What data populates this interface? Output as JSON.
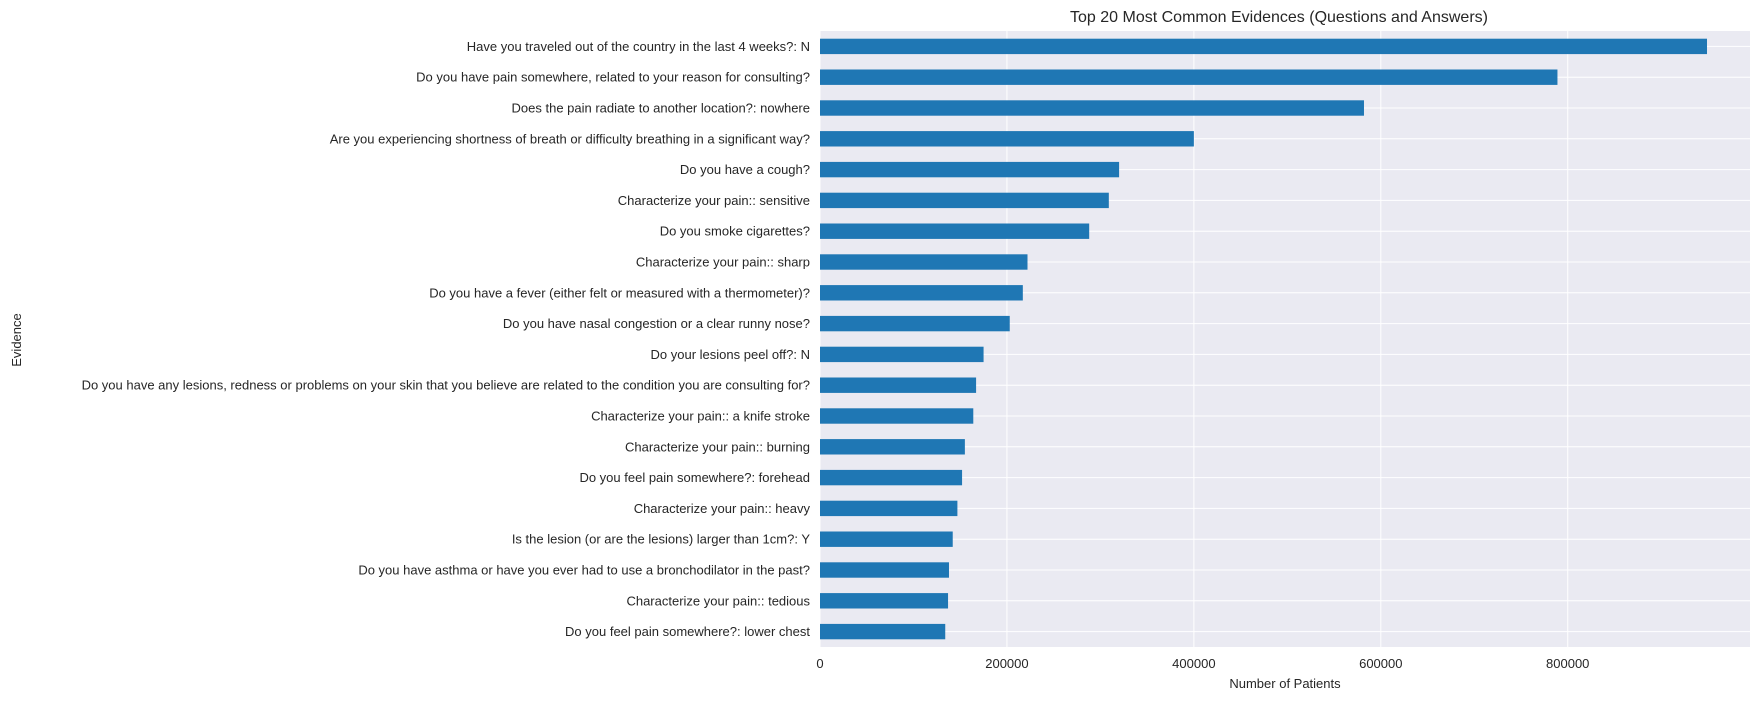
{
  "chart_data": {
    "type": "bar",
    "orientation": "horizontal",
    "title": "Top 20 Most Common Evidences (Questions and Answers)",
    "xlabel": "Number of Patients",
    "ylabel": "Evidence",
    "xlim": [
      0,
      995000
    ],
    "xticks": [
      0,
      200000,
      400000,
      600000,
      800000
    ],
    "xtick_labels": [
      "0",
      "200000",
      "400000",
      "600000",
      "800000"
    ],
    "grid": true,
    "legend": "none",
    "bar_color": "#1f77b4",
    "plot_background": "#eaeaf2",
    "grid_color": "#ffffff",
    "categories": [
      "Have you traveled out of the country in the last 4 weeks?: N",
      "Do you have pain somewhere, related to your reason for consulting?",
      "Does the pain radiate to another location?: nowhere",
      "Are you experiencing shortness of breath or difficulty breathing in a significant way?",
      "Do you have a cough?",
      "Characterize your pain:: sensitive",
      "Do you smoke cigarettes?",
      "Characterize your pain:: sharp",
      "Do you have a fever (either felt or measured with a thermometer)?",
      "Do you have nasal congestion or a clear runny nose?",
      "Do your lesions peel off?: N",
      "Do you have any lesions, redness or problems on your skin that you believe are related to the condition you are consulting for?",
      "Characterize your pain:: a knife stroke",
      "Characterize your pain:: burning",
      "Do you feel pain somewhere?: forehead",
      "Characterize your pain:: heavy",
      "Is the lesion (or are the lesions) larger than 1cm?: Y",
      "Do you have asthma or have you ever had to use a bronchodilator in the past?",
      "Characterize your pain:: tedious",
      "Do you feel pain somewhere?: lower chest"
    ],
    "values": [
      949000,
      789000,
      582000,
      400000,
      320000,
      309000,
      288000,
      222000,
      217000,
      203000,
      175000,
      167000,
      164000,
      155000,
      152000,
      147000,
      142000,
      138000,
      137000,
      134000
    ]
  }
}
